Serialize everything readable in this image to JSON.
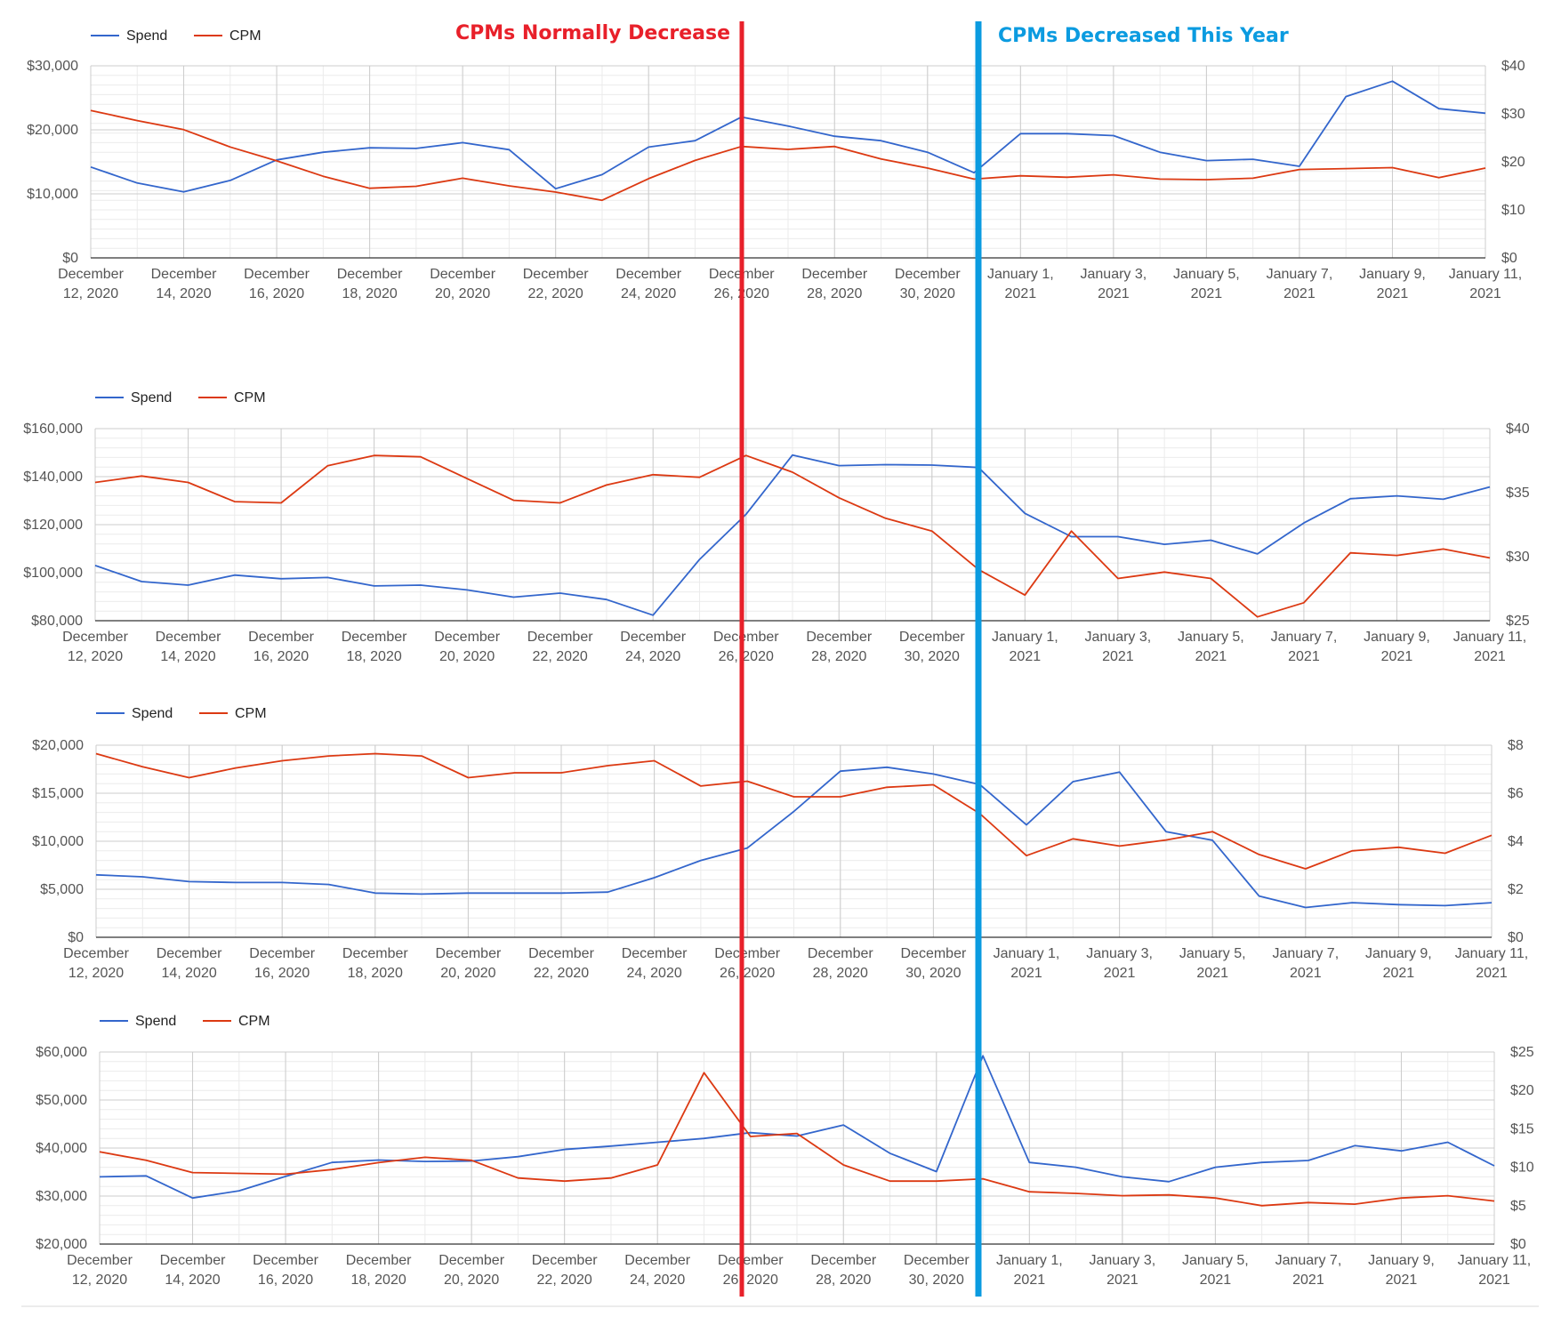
{
  "colors": {
    "spend": "#3366cc",
    "cpm": "#dc3912",
    "grid_major": "#cccccc",
    "grid_minor": "#ebebeb",
    "annotation_red": "#e8202a",
    "annotation_blue": "#0b9be0"
  },
  "annotations": {
    "left_title": "CPMs Normally Decrease",
    "right_title": "CPMs Decreased This Year",
    "left_line_date": "December 26, 2020",
    "right_line_date": "December 31, 2020"
  },
  "x_tick_labels": [
    [
      "December",
      "12, 2020"
    ],
    [
      "December",
      "14, 2020"
    ],
    [
      "December",
      "16, 2020"
    ],
    [
      "December",
      "18, 2020"
    ],
    [
      "December",
      "20, 2020"
    ],
    [
      "December",
      "22, 2020"
    ],
    [
      "December",
      "24, 2020"
    ],
    [
      "December",
      "26, 2020"
    ],
    [
      "December",
      "28, 2020"
    ],
    [
      "December",
      "30, 2020"
    ],
    [
      "January 1,",
      "2021"
    ],
    [
      "January 3,",
      "2021"
    ],
    [
      "January 5,",
      "2021"
    ],
    [
      "January 7,",
      "2021"
    ],
    [
      "January 9,",
      "2021"
    ],
    [
      "January 11,",
      "2021"
    ]
  ],
  "chart_data": [
    {
      "type": "line",
      "x": [
        "2020-12-12",
        "2020-12-13",
        "2020-12-14",
        "2020-12-15",
        "2020-12-16",
        "2020-12-17",
        "2020-12-18",
        "2020-12-19",
        "2020-12-20",
        "2020-12-21",
        "2020-12-22",
        "2020-12-23",
        "2020-12-24",
        "2020-12-25",
        "2020-12-26",
        "2020-12-27",
        "2020-12-28",
        "2020-12-29",
        "2020-12-30",
        "2020-12-31",
        "2021-01-01",
        "2021-01-02",
        "2021-01-03",
        "2021-01-04",
        "2021-01-05",
        "2021-01-06",
        "2021-01-07",
        "2021-01-08",
        "2021-01-09",
        "2021-01-10",
        "2021-01-11"
      ],
      "legend": [
        "Spend",
        "CPM"
      ],
      "legend_position": "top-left",
      "grid": true,
      "left_axis": {
        "series": "Spend",
        "ylim": [
          0,
          30000
        ],
        "ticks": [
          "$0",
          "$10,000",
          "$20,000",
          "$30,000"
        ]
      },
      "right_axis": {
        "series": "CPM",
        "ylim": [
          0,
          40
        ],
        "ticks": [
          "$0",
          "$10",
          "$20",
          "$30",
          "$40"
        ]
      },
      "series": [
        {
          "name": "Spend",
          "axis": "left",
          "values": [
            14200,
            11700,
            10300,
            12100,
            15300,
            16500,
            17200,
            17100,
            18000,
            16900,
            10800,
            13000,
            17300,
            18300,
            22000,
            20600,
            19000,
            18300,
            16500,
            13300,
            19400,
            19400,
            19100,
            16500,
            15200,
            15400,
            14300,
            25200,
            27600,
            23300,
            22600
          ]
        },
        {
          "name": "CPM",
          "axis": "right",
          "values": [
            30.7,
            28.6,
            26.7,
            23.1,
            20.2,
            17.0,
            14.5,
            14.9,
            16.6,
            15.0,
            13.7,
            12.0,
            16.5,
            20.3,
            23.2,
            22.6,
            23.2,
            20.6,
            18.7,
            16.4,
            17.1,
            16.8,
            17.3,
            16.4,
            16.3,
            16.6,
            18.4,
            18.6,
            18.8,
            16.7,
            18.7
          ]
        }
      ]
    },
    {
      "type": "line",
      "legend": [
        "Spend",
        "CPM"
      ],
      "legend_position": "top-left",
      "grid": true,
      "left_axis": {
        "series": "Spend",
        "ylim": [
          80000,
          160000
        ],
        "ticks": [
          "$80,000",
          "$100,000",
          "$120,000",
          "$140,000",
          "$160,000"
        ]
      },
      "right_axis": {
        "series": "CPM",
        "ylim": [
          25,
          40
        ],
        "ticks": [
          "$25",
          "$30",
          "$35",
          "$40"
        ]
      },
      "series": [
        {
          "name": "Spend",
          "axis": "left",
          "values": [
            103000,
            96300,
            94800,
            99000,
            97500,
            98000,
            94500,
            94800,
            92800,
            89800,
            91500,
            88800,
            82300,
            105500,
            124300,
            149000,
            144600,
            145000,
            144800,
            143800,
            124700,
            115000,
            115000,
            111800,
            113500,
            107800,
            120700,
            130800,
            132000,
            130600,
            135700
          ]
        },
        {
          "name": "CPM",
          "axis": "right",
          "values": [
            35.8,
            36.3,
            35.8,
            34.3,
            34.2,
            37.1,
            37.9,
            37.8,
            36.1,
            34.4,
            34.2,
            35.6,
            36.4,
            36.2,
            37.9,
            36.6,
            34.6,
            33.0,
            32.0,
            29.0,
            27.0,
            32.0,
            28.3,
            28.8,
            28.3,
            25.3,
            26.4,
            30.3,
            30.1,
            30.6,
            29.9
          ]
        }
      ]
    },
    {
      "type": "line",
      "legend": [
        "Spend",
        "CPM"
      ],
      "legend_position": "top-left",
      "grid": true,
      "left_axis": {
        "series": "Spend",
        "ylim": [
          0,
          20000
        ],
        "ticks": [
          "$0",
          "$5,000",
          "$10,000",
          "$15,000",
          "$20,000"
        ]
      },
      "right_axis": {
        "series": "CPM",
        "ylim": [
          0,
          8
        ],
        "ticks": [
          "$0",
          "$2",
          "$4",
          "$6",
          "$8"
        ]
      },
      "series": [
        {
          "name": "Spend",
          "axis": "left",
          "values": [
            6500,
            6300,
            5800,
            5700,
            5700,
            5500,
            4600,
            4500,
            4600,
            4600,
            4600,
            4700,
            6200,
            8000,
            9300,
            13100,
            17300,
            17700,
            17000,
            15900,
            11700,
            16200,
            17200,
            11000,
            10100,
            4300,
            3100,
            3600,
            3400,
            3300,
            3600
          ]
        },
        {
          "name": "CPM",
          "axis": "right",
          "values": [
            7.65,
            7.1,
            6.65,
            7.05,
            7.35,
            7.55,
            7.65,
            7.55,
            6.65,
            6.85,
            6.85,
            7.15,
            7.35,
            6.3,
            6.5,
            5.85,
            5.85,
            6.25,
            6.35,
            5.15,
            3.4,
            4.1,
            3.8,
            4.05,
            4.4,
            3.45,
            2.85,
            3.6,
            3.75,
            3.5,
            4.25
          ]
        }
      ]
    },
    {
      "type": "line",
      "legend": [
        "Spend",
        "CPM"
      ],
      "legend_position": "top-left",
      "grid": true,
      "left_axis": {
        "series": "Spend",
        "ylim": [
          20000,
          60000
        ],
        "ticks": [
          "$20,000",
          "$30,000",
          "$40,000",
          "$50,000",
          "$60,000"
        ]
      },
      "right_axis": {
        "series": "CPM",
        "ylim": [
          0,
          25
        ],
        "ticks": [
          "$0",
          "$5",
          "$10",
          "$15",
          "$20",
          "$25"
        ]
      },
      "series": [
        {
          "name": "Spend",
          "axis": "left",
          "values": [
            34000,
            34200,
            29600,
            31100,
            34100,
            37000,
            37500,
            37200,
            37300,
            38200,
            39700,
            40400,
            41200,
            42000,
            43200,
            42500,
            44800,
            38900,
            35100,
            59200,
            37000,
            36000,
            34000,
            33000,
            36000,
            37000,
            37400,
            40500,
            39400,
            41200,
            36300
          ]
        },
        {
          "name": "CPM",
          "axis": "right",
          "values": [
            12.0,
            10.9,
            9.3,
            9.2,
            9.1,
            9.7,
            10.6,
            11.3,
            10.9,
            8.6,
            8.2,
            8.6,
            10.3,
            22.3,
            14.0,
            14.4,
            10.3,
            8.2,
            8.2,
            8.5,
            6.8,
            6.6,
            6.3,
            6.4,
            6.0,
            5.0,
            5.4,
            5.2,
            6.0,
            6.3,
            5.6
          ]
        }
      ]
    }
  ]
}
